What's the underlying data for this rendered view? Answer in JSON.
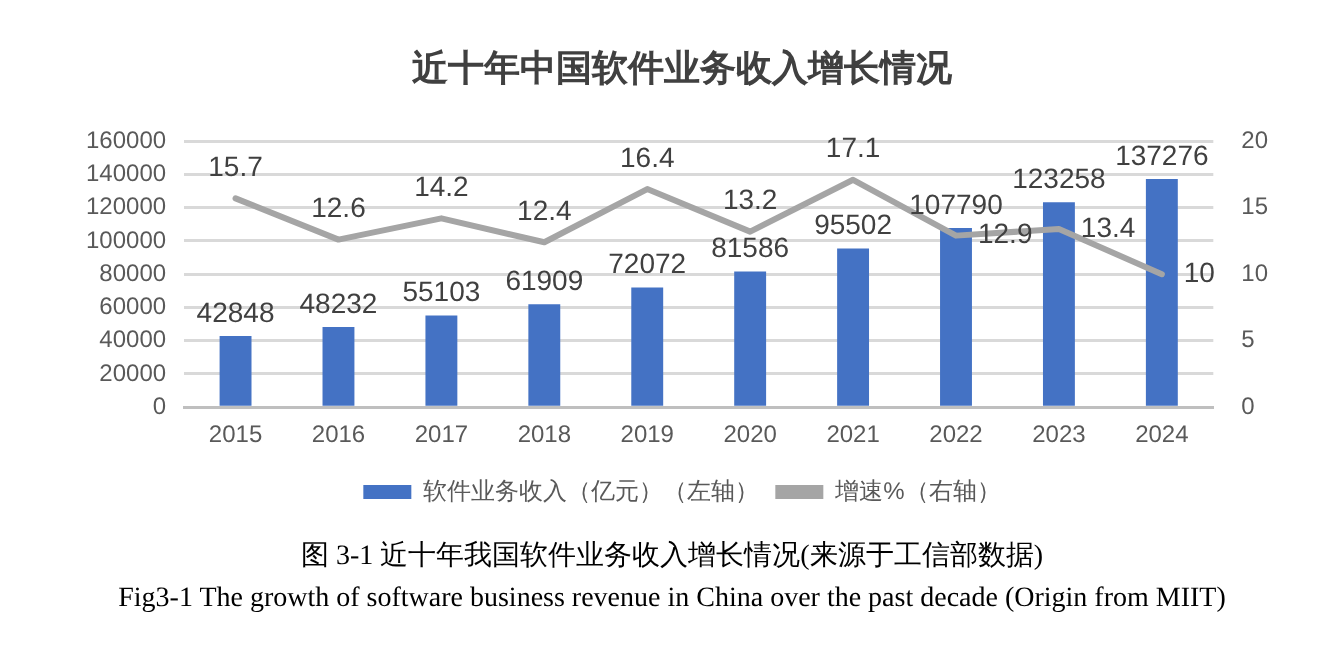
{
  "chart_data": {
    "type": "bar",
    "title": "近十年中国软件业务收入增长情况",
    "categories": [
      "2015",
      "2016",
      "2017",
      "2018",
      "2019",
      "2020",
      "2021",
      "2022",
      "2023",
      "2024"
    ],
    "series": [
      {
        "name": "软件业务收入（亿元）（左轴）",
        "color": "#4472c4",
        "values": [
          42848,
          48232,
          55103,
          61909,
          72072,
          81586,
          95502,
          107790,
          123258,
          137276
        ]
      },
      {
        "name": "增速%（右轴）",
        "type": "line",
        "axis": "y2",
        "color": "#a5a5a5",
        "values": [
          15.7,
          12.6,
          14.2,
          12.4,
          16.4,
          13.2,
          17.1,
          12.9,
          13.4,
          10
        ]
      }
    ],
    "ylim": [
      0,
      160000
    ],
    "yticks": [
      0,
      20000,
      40000,
      60000,
      80000,
      100000,
      120000,
      140000,
      160000
    ],
    "y2lim": [
      0,
      20
    ],
    "y2ticks": [
      0,
      5,
      10,
      15,
      20
    ],
    "grid": "y",
    "legend": "bottom",
    "data_labels": true,
    "annotations": [
      "图 3-1  近十年我国软件业务收入增长情况(来源于工信部数据)",
      "Fig3-1 The growth of software business revenue in China over the past decade (Origin from MIIT)"
    ]
  }
}
